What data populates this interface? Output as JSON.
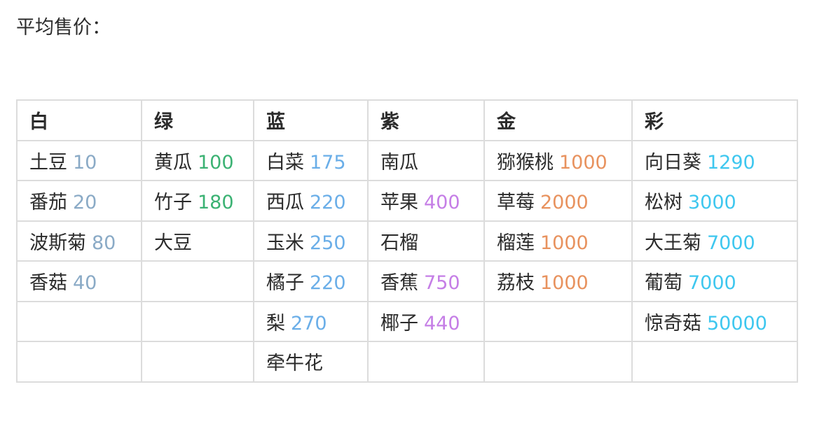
{
  "title": "平均售价：",
  "columns": [
    {
      "header": "白",
      "color": "#8aaac6",
      "items": [
        {
          "name": "土豆",
          "price": "10"
        },
        {
          "name": "番茄",
          "price": "20"
        },
        {
          "name": "波斯菊",
          "price": "80"
        },
        {
          "name": "香菇",
          "price": "40"
        }
      ]
    },
    {
      "header": "绿",
      "color": "#3bb273",
      "items": [
        {
          "name": "黄瓜",
          "price": "100"
        },
        {
          "name": "竹子",
          "price": "180"
        },
        {
          "name": "大豆",
          "price": ""
        }
      ]
    },
    {
      "header": "蓝",
      "color": "#6aaee8",
      "items": [
        {
          "name": "白菜",
          "price": "175"
        },
        {
          "name": "西瓜",
          "price": "220"
        },
        {
          "name": "玉米",
          "price": "250"
        },
        {
          "name": "橘子",
          "price": "220"
        },
        {
          "name": "梨",
          "price": "270"
        },
        {
          "name": "牵牛花",
          "price": ""
        }
      ]
    },
    {
      "header": "紫",
      "color": "#c57ee6",
      "items": [
        {
          "name": "南瓜",
          "price": ""
        },
        {
          "name": "苹果",
          "price": "400"
        },
        {
          "name": "石榴",
          "price": ""
        },
        {
          "name": "香蕉",
          "price": "750"
        },
        {
          "name": "椰子",
          "price": "440"
        }
      ]
    },
    {
      "header": "金",
      "color": "#e8925e",
      "items": [
        {
          "name": "猕猴桃",
          "price": "1000"
        },
        {
          "name": "草莓",
          "price": "2000"
        },
        {
          "name": "榴莲",
          "price": "1000"
        },
        {
          "name": "荔枝",
          "price": "1000"
        }
      ]
    },
    {
      "header": "彩",
      "color": "#3ec7ef",
      "items": [
        {
          "name": "向日葵",
          "price": "1290"
        },
        {
          "name": "松树",
          "price": "3000"
        },
        {
          "name": "大王菊",
          "price": "7000"
        },
        {
          "name": "葡萄",
          "price": "7000"
        },
        {
          "name": "惊奇菇",
          "price": "50000"
        }
      ]
    }
  ]
}
